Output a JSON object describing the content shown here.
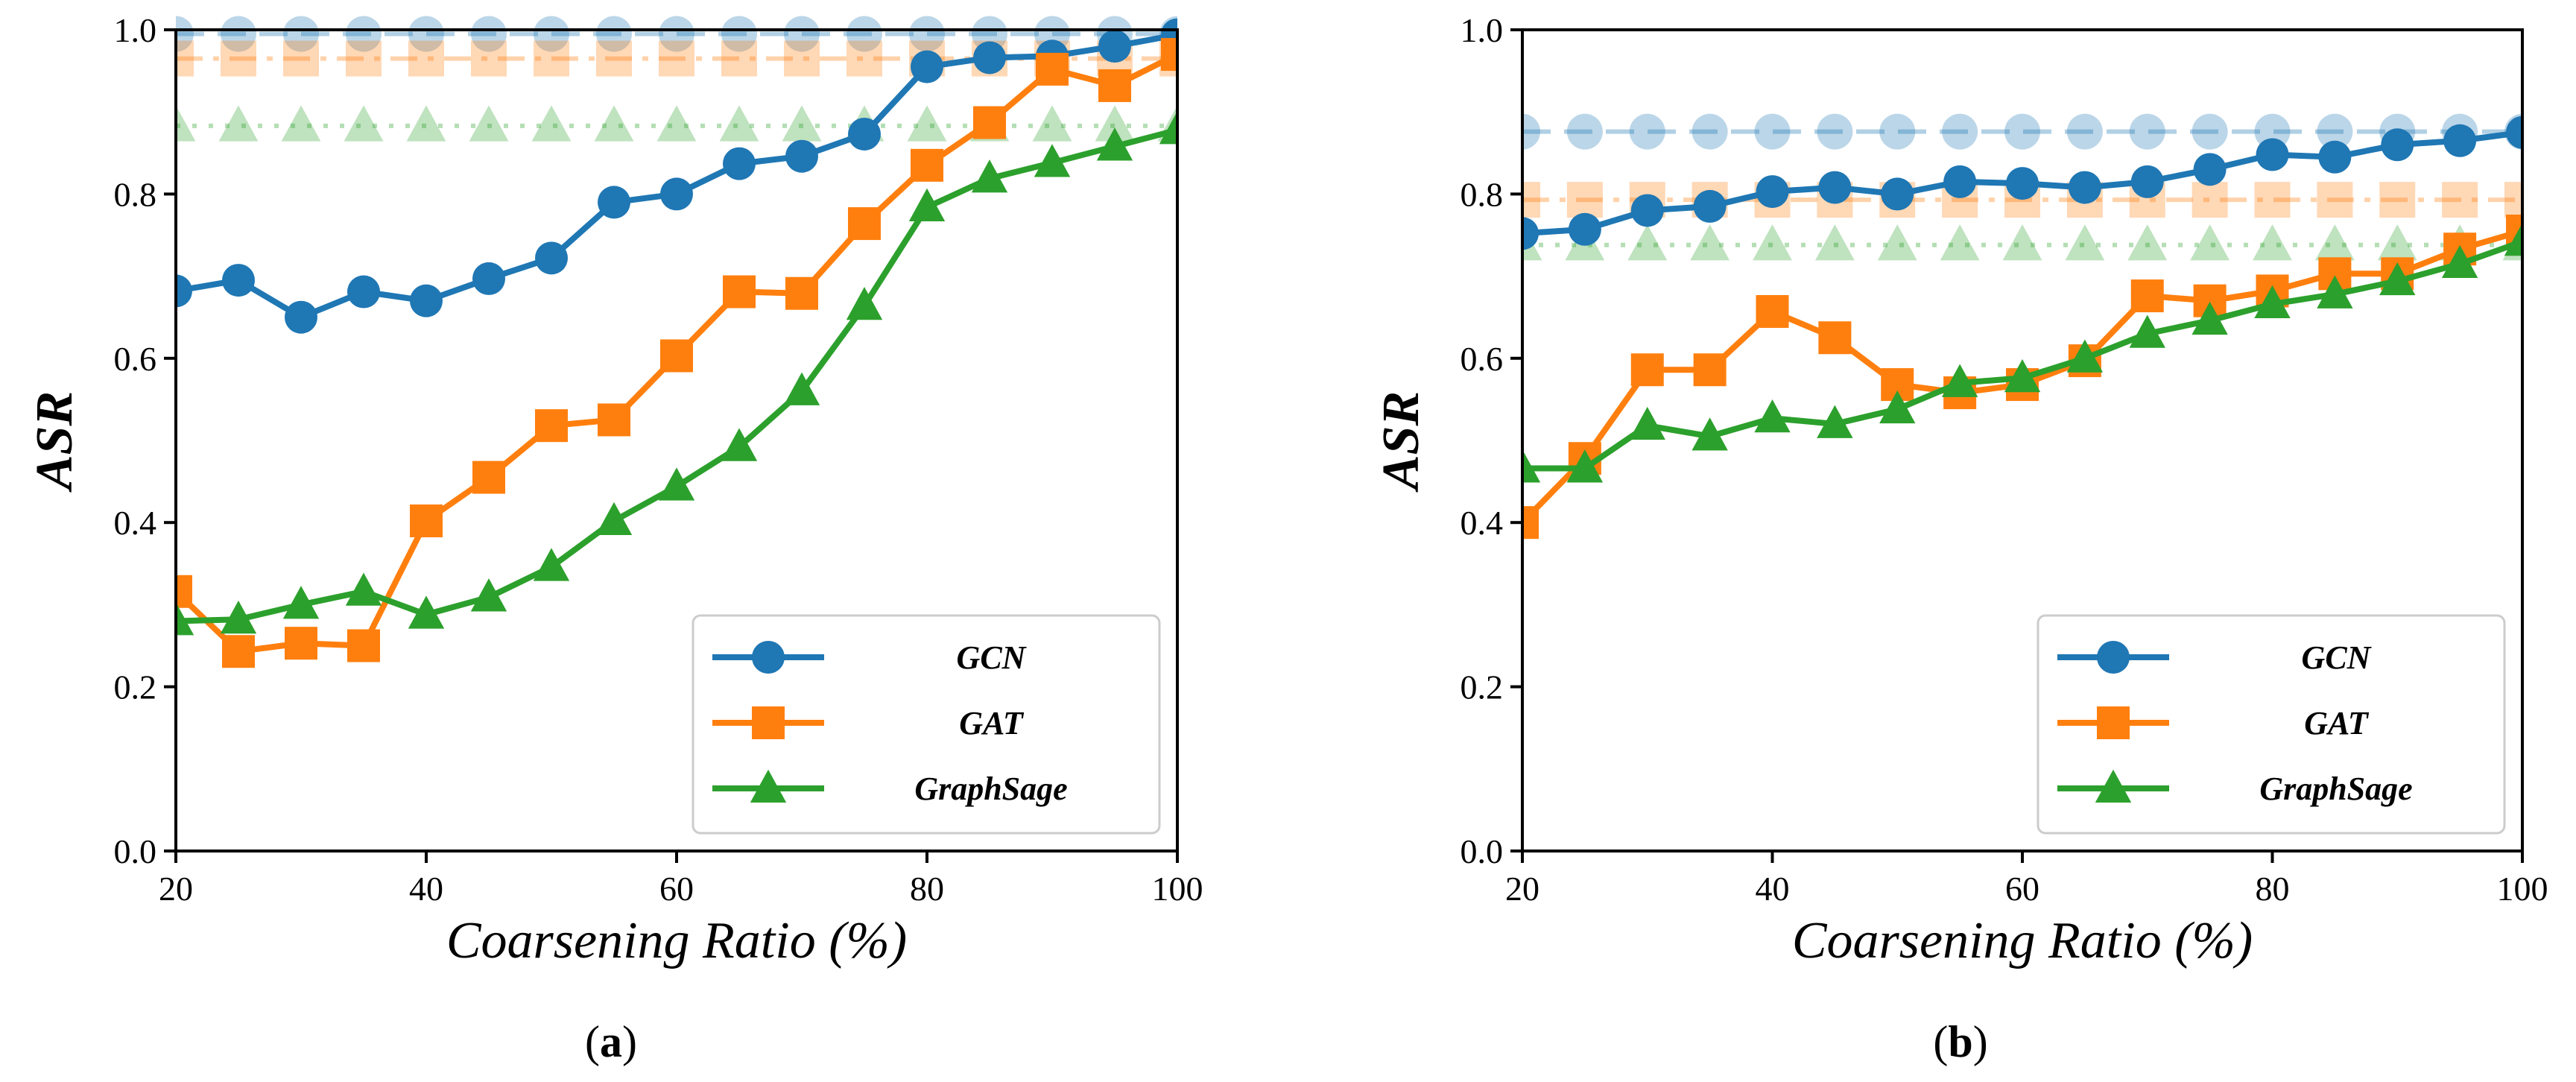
{
  "chart_data": [
    {
      "type": "line",
      "caption": "a",
      "xlabel": "Coarsening Ratio (%)",
      "ylabel": "ASR",
      "xlim": [
        20,
        100
      ],
      "ylim": [
        0.0,
        1.0
      ],
      "xticks": [
        20,
        40,
        60,
        80,
        100
      ],
      "yticks": [
        0.0,
        0.2,
        0.4,
        0.6,
        0.8,
        1.0
      ],
      "x": [
        20,
        25,
        30,
        35,
        40,
        45,
        50,
        55,
        60,
        65,
        70,
        75,
        80,
        85,
        90,
        95,
        100
      ],
      "legend_position": "bottom-right",
      "series": [
        {
          "name": "GCN",
          "color": "#1f77b4",
          "marker": "circle",
          "values": [
            0.682,
            0.695,
            0.65,
            0.681,
            0.67,
            0.697,
            0.722,
            0.79,
            0.8,
            0.837,
            0.846,
            0.873,
            0.955,
            0.966,
            0.968,
            0.98,
            0.994
          ]
        },
        {
          "name": "GAT",
          "color": "#ff7f0e",
          "marker": "square",
          "values": [
            0.316,
            0.243,
            0.253,
            0.25,
            0.402,
            0.455,
            0.518,
            0.525,
            0.603,
            0.681,
            0.679,
            0.764,
            0.835,
            0.887,
            0.952,
            0.932,
            0.97
          ]
        },
        {
          "name": "GraphSage",
          "color": "#2ca02c",
          "marker": "triangle",
          "values": [
            0.28,
            0.282,
            0.3,
            0.316,
            0.288,
            0.309,
            0.346,
            0.402,
            0.444,
            0.492,
            0.56,
            0.664,
            0.784,
            0.819,
            0.838,
            0.858,
            0.878
          ]
        }
      ],
      "baselines": [
        {
          "name": "GCN",
          "color": "#1f77b4",
          "marker": "circle",
          "style": "dashed",
          "value": 0.995
        },
        {
          "name": "GAT",
          "color": "#ff7f0e",
          "marker": "square",
          "style": "dashdot",
          "value": 0.965
        },
        {
          "name": "GraphSage",
          "color": "#2ca02c",
          "marker": "triangle",
          "style": "dotted",
          "value": 0.883
        }
      ]
    },
    {
      "type": "line",
      "caption": "b",
      "xlabel": "Coarsening Ratio (%)",
      "ylabel": "ASR",
      "xlim": [
        20,
        100
      ],
      "ylim": [
        0.0,
        1.0
      ],
      "xticks": [
        20,
        40,
        60,
        80,
        100
      ],
      "yticks": [
        0.0,
        0.2,
        0.4,
        0.6,
        0.8,
        1.0
      ],
      "x": [
        20,
        25,
        30,
        35,
        40,
        45,
        50,
        55,
        60,
        65,
        70,
        75,
        80,
        85,
        90,
        95,
        100
      ],
      "legend_position": "bottom-right",
      "series": [
        {
          "name": "GCN",
          "color": "#1f77b4",
          "marker": "circle",
          "values": [
            0.752,
            0.757,
            0.78,
            0.785,
            0.803,
            0.808,
            0.8,
            0.815,
            0.813,
            0.808,
            0.815,
            0.83,
            0.848,
            0.845,
            0.86,
            0.865,
            0.875
          ]
        },
        {
          "name": "GAT",
          "color": "#ff7f0e",
          "marker": "square",
          "values": [
            0.4,
            0.478,
            0.586,
            0.586,
            0.657,
            0.625,
            0.568,
            0.558,
            0.568,
            0.597,
            0.676,
            0.67,
            0.682,
            0.703,
            0.703,
            0.733,
            0.755
          ]
        },
        {
          "name": "GraphSage",
          "color": "#2ca02c",
          "marker": "triangle",
          "values": [
            0.466,
            0.466,
            0.518,
            0.505,
            0.527,
            0.52,
            0.538,
            0.57,
            0.576,
            0.6,
            0.63,
            0.646,
            0.666,
            0.678,
            0.694,
            0.715,
            0.742
          ]
        }
      ],
      "baselines": [
        {
          "name": "GCN",
          "color": "#1f77b4",
          "marker": "circle",
          "style": "dashed",
          "value": 0.876
        },
        {
          "name": "GAT",
          "color": "#ff7f0e",
          "marker": "square",
          "style": "dashdot",
          "value": 0.793
        },
        {
          "name": "GraphSage",
          "color": "#2ca02c",
          "marker": "triangle",
          "style": "dotted",
          "value": 0.738
        }
      ]
    }
  ]
}
